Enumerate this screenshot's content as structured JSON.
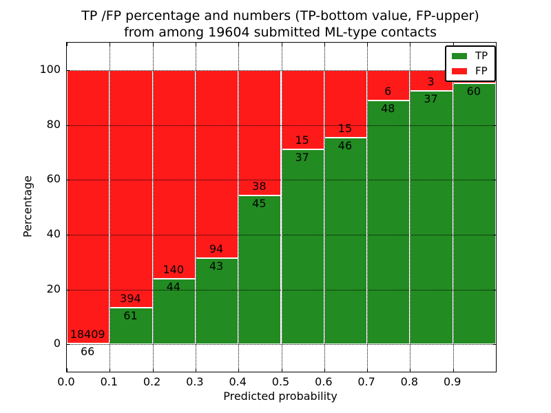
{
  "figure": {
    "title_line1": "TP /FP percentage and numbers (TP-bottom value, FP-upper)",
    "title_line2": "from among 19604 submitted ML-type contacts"
  },
  "axes": {
    "xlabel": "Predicted probability",
    "ylabel": "Percentage",
    "x_ticks": [
      {
        "value": 0.0,
        "label": "0.0"
      },
      {
        "value": 0.1,
        "label": "0.1"
      },
      {
        "value": 0.2,
        "label": "0.2"
      },
      {
        "value": 0.3,
        "label": "0.3"
      },
      {
        "value": 0.4,
        "label": "0.4"
      },
      {
        "value": 0.5,
        "label": "0.5"
      },
      {
        "value": 0.6,
        "label": "0.6"
      },
      {
        "value": 0.7,
        "label": "0.7"
      },
      {
        "value": 0.8,
        "label": "0.8"
      },
      {
        "value": 0.9,
        "label": "0.9"
      }
    ],
    "y_ticks": [
      {
        "value": 0,
        "label": "0"
      },
      {
        "value": 20,
        "label": "20"
      },
      {
        "value": 40,
        "label": "40"
      },
      {
        "value": 60,
        "label": "60"
      },
      {
        "value": 80,
        "label": "80"
      },
      {
        "value": 100,
        "label": "100"
      }
    ],
    "x_gridlines": [
      0.1,
      0.2,
      0.3,
      0.4,
      0.5,
      0.6,
      0.7,
      0.8,
      0.9
    ],
    "y_gridlines": [
      0,
      20,
      40,
      60,
      80,
      100
    ],
    "xlim": [
      0.0,
      1.0
    ],
    "ylim": [
      -10,
      110
    ]
  },
  "legend": {
    "items": [
      {
        "label": "TP",
        "color_key": "tp"
      },
      {
        "label": "FP",
        "color_key": "fp"
      }
    ],
    "position": "upper right"
  },
  "colors": {
    "tp": "#228B22",
    "fp": "#FF1A1A",
    "text": "#000000",
    "grid": "#000000",
    "bar_edge": "#FFFFFF"
  },
  "chart_data": {
    "type": "bar",
    "stacked": true,
    "percent_normalized": true,
    "title": "TP /FP percentage and numbers (TP-bottom value, FP-upper) from among 19604 submitted ML-type contacts",
    "xlabel": "Predicted probability",
    "ylabel": "Percentage",
    "total_contacts": 19604,
    "bin_width": 0.1,
    "categories": [
      "0.0-0.1",
      "0.1-0.2",
      "0.2-0.3",
      "0.3-0.4",
      "0.4-0.5",
      "0.5-0.6",
      "0.6-0.7",
      "0.7-0.8",
      "0.8-0.9",
      "0.9-1.0"
    ],
    "series": [
      {
        "name": "TP",
        "counts": [
          66,
          61,
          44,
          43,
          45,
          37,
          46,
          48,
          37,
          60
        ]
      },
      {
        "name": "FP",
        "counts": [
          18409,
          394,
          140,
          94,
          38,
          15,
          15,
          6,
          3,
          3
        ]
      }
    ],
    "bins": [
      {
        "x_start": 0.0,
        "tp_count": 66,
        "fp_count": 18409,
        "tp_label_visible": true,
        "fp_label_visible": true
      },
      {
        "x_start": 0.1,
        "tp_count": 61,
        "fp_count": 394,
        "tp_label_visible": true,
        "fp_label_visible": true
      },
      {
        "x_start": 0.2,
        "tp_count": 44,
        "fp_count": 140,
        "tp_label_visible": true,
        "fp_label_visible": true
      },
      {
        "x_start": 0.3,
        "tp_count": 43,
        "fp_count": 94,
        "tp_label_visible": true,
        "fp_label_visible": true
      },
      {
        "x_start": 0.4,
        "tp_count": 45,
        "fp_count": 38,
        "tp_label_visible": true,
        "fp_label_visible": true
      },
      {
        "x_start": 0.5,
        "tp_count": 37,
        "fp_count": 15,
        "tp_label_visible": true,
        "fp_label_visible": true
      },
      {
        "x_start": 0.6,
        "tp_count": 46,
        "fp_count": 15,
        "tp_label_visible": true,
        "fp_label_visible": true
      },
      {
        "x_start": 0.7,
        "tp_count": 48,
        "fp_count": 6,
        "tp_label_visible": true,
        "fp_label_visible": true
      },
      {
        "x_start": 0.8,
        "tp_count": 37,
        "fp_count": 3,
        "tp_label_visible": true,
        "fp_label_visible": true
      },
      {
        "x_start": 0.9,
        "tp_count": 60,
        "fp_count": 3,
        "tp_label_visible": true,
        "fp_label_visible": false
      }
    ],
    "grid": "dotted",
    "legend_position": "upper right"
  }
}
